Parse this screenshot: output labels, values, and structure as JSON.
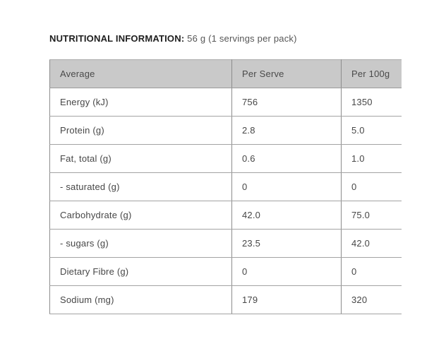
{
  "title": {
    "bold": "NUTRITIONAL INFORMATION:",
    "regular": " 56 g (1 servings per pack)"
  },
  "table": {
    "columns": [
      {
        "label": "Average"
      },
      {
        "label": "Per Serve"
      },
      {
        "label": "Per 100g"
      }
    ],
    "rows": [
      {
        "name": "Energy (kJ)",
        "per_serve": "756",
        "per_100g": "1350"
      },
      {
        "name": "Protein (g)",
        "per_serve": "2.8",
        "per_100g": "5.0"
      },
      {
        "name": "Fat, total (g)",
        "per_serve": "0.6",
        "per_100g": "1.0"
      },
      {
        "name": "- saturated (g)",
        "per_serve": "0",
        "per_100g": "0"
      },
      {
        "name": "Carbohydrate (g)",
        "per_serve": "42.0",
        "per_100g": "75.0"
      },
      {
        "name": "- sugars (g)",
        "per_serve": "23.5",
        "per_100g": "42.0"
      },
      {
        "name": "Dietary Fibre (g)",
        "per_serve": "0",
        "per_100g": "0"
      },
      {
        "name": "Sodium (mg)",
        "per_serve": "179",
        "per_100g": "320"
      }
    ],
    "colors": {
      "header_background": "#c9c9c9",
      "border": "#8c8c8c",
      "row_border": "#a3a3a3",
      "text": "#474747",
      "title_bold_text": "#1e1e1e"
    }
  }
}
